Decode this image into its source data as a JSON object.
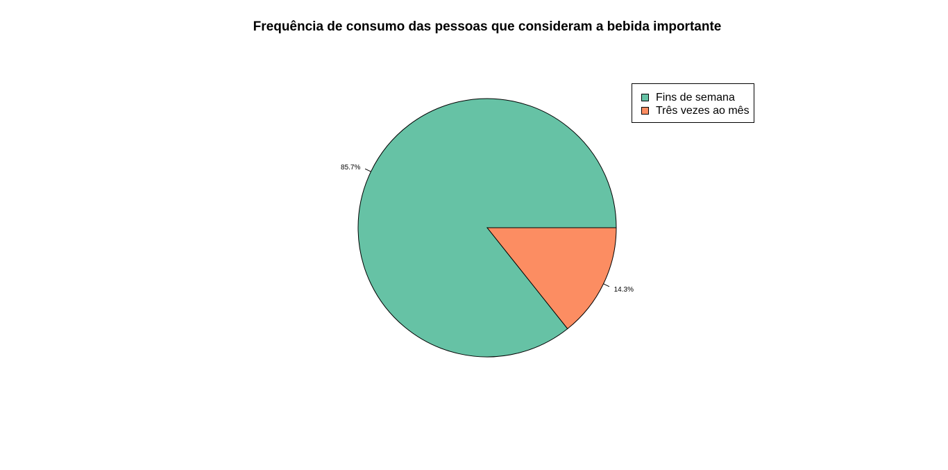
{
  "chart_data": {
    "type": "pie",
    "title": "Frequência de consumo das pessoas que consideram a bebida importante",
    "categories": [
      "Fins de semana",
      "Três vezes ao mês"
    ],
    "values": [
      85.7,
      14.3
    ],
    "labels": [
      "85.7%",
      "14.3%"
    ],
    "colors": [
      "#66C2A5",
      "#FC8D62"
    ],
    "legend_position": "top-right"
  }
}
